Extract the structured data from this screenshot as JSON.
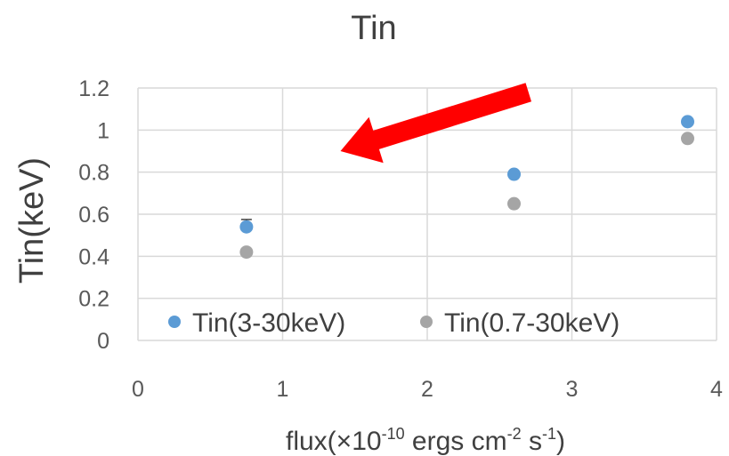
{
  "chart_data": {
    "type": "scatter",
    "title": "Tin",
    "xlabel": {
      "prefix": "flux(×10",
      "exp1": "-10",
      "mid": " ergs cm",
      "exp2": "-2",
      "mid2": " s",
      "exp3": "-1",
      "suffix": ")"
    },
    "ylabel": "Tin(keV)",
    "xlim": [
      0,
      4
    ],
    "ylim": [
      0,
      1.2
    ],
    "x_ticks": [
      "0",
      "1",
      "2",
      "3",
      "4"
    ],
    "y_ticks": [
      "0",
      "0.2",
      "0.4",
      "0.6",
      "0.8",
      "1",
      "1.2"
    ],
    "grid": true,
    "legend_position": "bottom-inside",
    "series": [
      {
        "name": "Tin(3-30keV)",
        "color": "#5b9bd5",
        "points": [
          {
            "x": 0.75,
            "y": 0.54,
            "err": 0.035
          },
          {
            "x": 2.6,
            "y": 0.79
          },
          {
            "x": 3.8,
            "y": 1.04
          }
        ]
      },
      {
        "name": "Tin(0.7-30keV)",
        "color": "#a5a5a5",
        "points": [
          {
            "x": 0.75,
            "y": 0.42
          },
          {
            "x": 2.6,
            "y": 0.65
          },
          {
            "x": 3.8,
            "y": 0.96
          }
        ]
      }
    ],
    "annotation": {
      "type": "arrow",
      "color": "#ff0000",
      "from": {
        "x": 2.7,
        "y": 1.18
      },
      "to": {
        "x": 1.4,
        "y": 0.9
      }
    }
  }
}
